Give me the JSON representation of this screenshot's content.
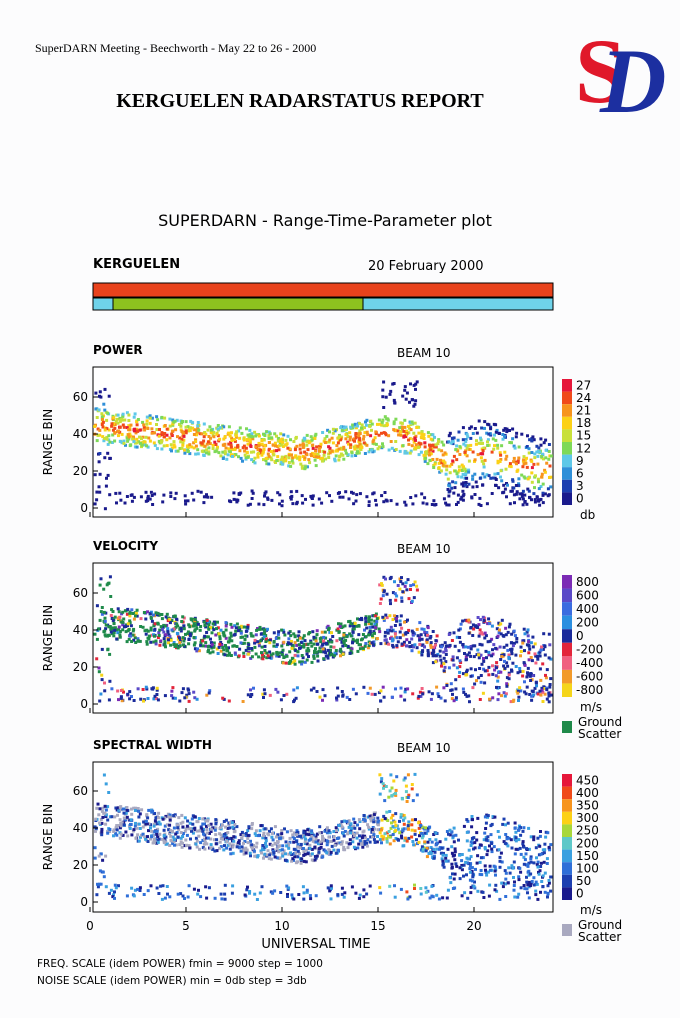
{
  "header": {
    "meeting": "SuperDARN Meeting - Beechworth - May 22 to 26 - 2000",
    "title": "KERGUELEN RADARSTATUS REPORT",
    "logo": [
      "S",
      "D"
    ]
  },
  "plot": {
    "title": "SUPERDARN - Range-Time-Parameter plot",
    "station": "KERGUELEN",
    "date": "20 February 2000",
    "panels": [
      {
        "name": "POWER",
        "beam": "BEAM 10",
        "ylabel": "RANGE BIN",
        "yticks": [
          "0",
          "20",
          "40",
          "60"
        ],
        "scale": [
          "27",
          "24",
          "21",
          "18",
          "15",
          "12",
          "9",
          "6",
          "3",
          "0"
        ],
        "unit": "db"
      },
      {
        "name": "VELOCITY",
        "beam": "BEAM 10",
        "ylabel": "RANGE BIN",
        "yticks": [
          "0",
          "20",
          "40",
          "60"
        ],
        "scale": [
          "800",
          "600",
          "400",
          "200",
          "0",
          "-200",
          "-400",
          "-600",
          "-800"
        ],
        "unit": "m/s",
        "ground": [
          "Ground",
          "Scatter"
        ]
      },
      {
        "name": "SPECTRAL WIDTH",
        "beam": "BEAM 10",
        "ylabel": "RANGE BIN",
        "yticks": [
          "0",
          "20",
          "40",
          "60"
        ],
        "scale": [
          "450",
          "400",
          "350",
          "300",
          "250",
          "200",
          "150",
          "100",
          "50",
          "0"
        ],
        "unit": "m/s",
        "ground": [
          "Ground",
          "Scatter"
        ]
      }
    ],
    "xticks": [
      "0",
      "5",
      "10",
      "15",
      "20"
    ],
    "xlabel": "UNIVERSAL TIME"
  },
  "footer": [
    "FREQ. SCALE (idem POWER) fmin = 9000  step = 1000",
    "NOISE SCALE (idem POWER)  min = 0db   step = 3db"
  ]
}
